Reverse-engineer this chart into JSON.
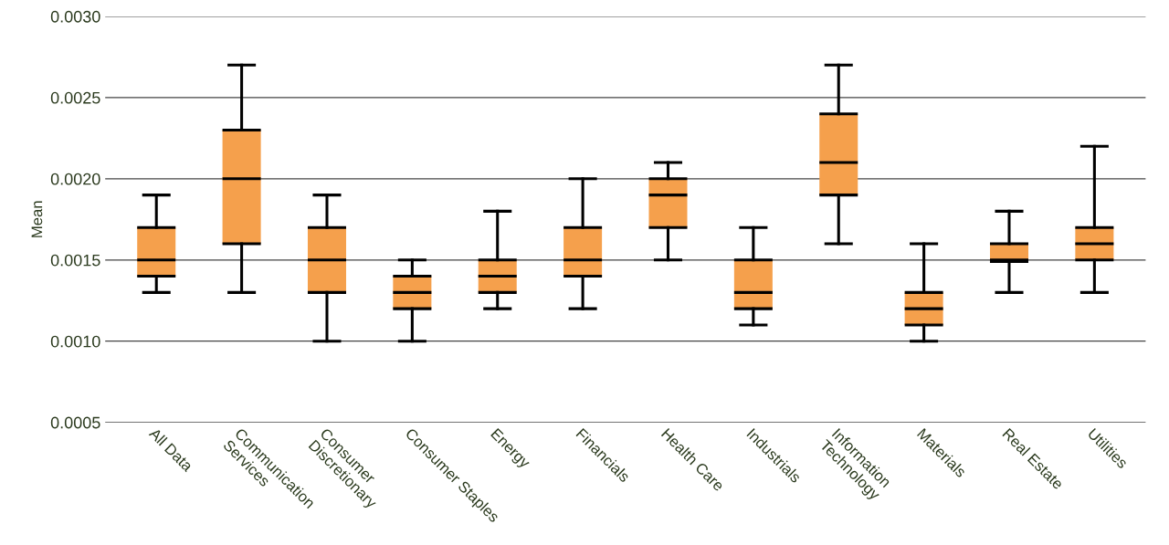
{
  "chart_data": {
    "type": "box",
    "ylabel": "Mean",
    "categories": [
      "All Data",
      "Communication\nServices",
      "Consumer\nDiscretionary",
      "Consumer Staples",
      "Energy",
      "Financials",
      "Health Care",
      "Industrials",
      "Information\nTechnology",
      "Materials",
      "Real Estate",
      "Utilities"
    ],
    "boxes": [
      {
        "low": 0.0013,
        "q1": 0.0014,
        "median": 0.0015,
        "q3": 0.0017,
        "high": 0.0019
      },
      {
        "low": 0.0013,
        "q1": 0.0016,
        "median": 0.002,
        "q3": 0.0023,
        "high": 0.0027
      },
      {
        "low": 0.001,
        "q1": 0.0013,
        "median": 0.0015,
        "q3": 0.0017,
        "high": 0.0019
      },
      {
        "low": 0.001,
        "q1": 0.0012,
        "median": 0.0013,
        "q3": 0.0014,
        "high": 0.0015
      },
      {
        "low": 0.0012,
        "q1": 0.0013,
        "median": 0.0014,
        "q3": 0.0015,
        "high": 0.0018
      },
      {
        "low": 0.0012,
        "q1": 0.0014,
        "median": 0.0015,
        "q3": 0.0017,
        "high": 0.002
      },
      {
        "low": 0.0015,
        "q1": 0.0017,
        "median": 0.0019,
        "q3": 0.002,
        "high": 0.0021
      },
      {
        "low": 0.0011,
        "q1": 0.0012,
        "median": 0.0013,
        "q3": 0.0015,
        "high": 0.0017
      },
      {
        "low": 0.0016,
        "q1": 0.0019,
        "median": 0.0021,
        "q3": 0.0024,
        "high": 0.0027
      },
      {
        "low": 0.001,
        "q1": 0.0011,
        "median": 0.0012,
        "q3": 0.0013,
        "high": 0.0016
      },
      {
        "low": 0.0013,
        "q1": 0.00149,
        "median": 0.0015,
        "q3": 0.0016,
        "high": 0.0018
      },
      {
        "low": 0.0013,
        "q1": 0.0015,
        "median": 0.0016,
        "q3": 0.0017,
        "high": 0.0022
      }
    ],
    "color": "#f5a04c",
    "ylim": [
      0.0005,
      0.003
    ],
    "yticks": [
      {
        "value": 0.0005,
        "label": "0.0005"
      },
      {
        "value": 0.001,
        "label": "0.0010"
      },
      {
        "value": 0.0015,
        "label": "0.0015"
      },
      {
        "value": 0.002,
        "label": "0.0020"
      },
      {
        "value": 0.0025,
        "label": "0.0025"
      },
      {
        "value": 0.003,
        "label": "0.0030"
      }
    ],
    "grid": "y"
  }
}
